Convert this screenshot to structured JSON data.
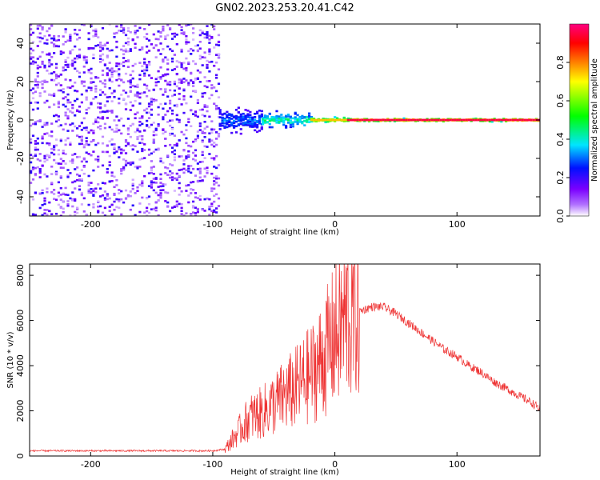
{
  "title": "GN02.2023.253.20.41.C42",
  "chart_data": [
    {
      "type": "heatmap",
      "xlabel": "Height of straight line (km)",
      "ylabel": "Frequency (Hz)",
      "xlim": [
        -250,
        168
      ],
      "ylim": [
        -50,
        50
      ],
      "xticks": [
        -200,
        -100,
        0,
        100
      ],
      "yticks": [
        -40,
        -20,
        0,
        20,
        40
      ],
      "colorbar": {
        "label": "Normalized spectral amplitude",
        "range": [
          0,
          1
        ],
        "ticks": [
          "0.0",
          "0.2",
          "0.4",
          "0.6",
          "0.8"
        ],
        "stops": [
          "#ffffff",
          "#7b00ff",
          "#0000ff",
          "#00e5ff",
          "#00ff00",
          "#ffff00",
          "#ff8000",
          "#ff0000",
          "#ff0080"
        ]
      },
      "regions": [
        {
          "x": [
            -250,
            -95
          ],
          "freq_spread": 50,
          "amplitude": 0.12,
          "description_level": "noise"
        },
        {
          "x": [
            -95,
            -60
          ],
          "freq_spread": 8,
          "amplitude": 0.35
        },
        {
          "x": [
            -60,
            -20
          ],
          "freq_spread": 5,
          "amplitude": 0.5
        },
        {
          "x": [
            -20,
            10
          ],
          "freq_spread": 2,
          "amplitude": 0.75
        },
        {
          "x": [
            10,
            168
          ],
          "freq_spread": 1,
          "amplitude": 0.95
        }
      ]
    },
    {
      "type": "line",
      "xlabel": "Height of straight line (km)",
      "ylabel": "SNR (10 * v/v)",
      "xlim": [
        -250,
        168
      ],
      "ylim": [
        0,
        8500
      ],
      "xticks": [
        -200,
        -100,
        0,
        100
      ],
      "yticks": [
        0,
        2000,
        4000,
        6000,
        8000
      ],
      "color": "#ee3333",
      "series": [
        {
          "name": "",
          "x": [
            -250,
            -200,
            -150,
            -100,
            -90,
            -80,
            -70,
            -60,
            -50,
            -40,
            -30,
            -20,
            -10,
            0,
            10,
            20,
            30,
            40,
            50,
            60,
            70,
            80,
            90,
            100,
            110,
            120,
            130,
            140,
            150,
            160,
            168
          ],
          "values": [
            230,
            230,
            230,
            230,
            300,
            1000,
            1700,
            1900,
            2300,
            2700,
            3100,
            3600,
            4300,
            5300,
            6200,
            6400,
            6600,
            6600,
            6300,
            5900,
            5500,
            5100,
            4700,
            4400,
            4000,
            3700,
            3300,
            3000,
            2700,
            2400,
            2100
          ]
        }
      ]
    }
  ]
}
